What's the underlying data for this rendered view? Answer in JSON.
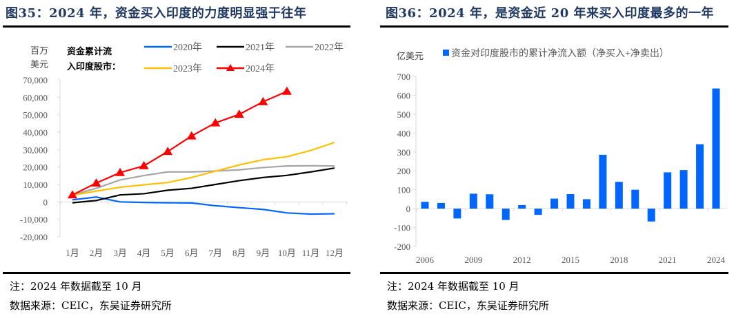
{
  "left": {
    "figure_title": "图35：2024 年，资金买入印度的力度明显强于往年",
    "note": "注：2024 年数据截至 10 月",
    "source": "数据来源：CEIC，东吴证券研究所"
  },
  "right": {
    "figure_title": "图36：2024 年，是资金近 20 年来买入印度最多的一年",
    "note": "注：2024 年数据截至 10 月",
    "source": "数据来源：CEIC，东吴证券研究所"
  },
  "chart_data": [
    {
      "type": "line",
      "title": "2024 年，资金买入印度的力度明显强于往年",
      "ylabel": "百万美元",
      "ylabel_lines": [
        "百万",
        "美元"
      ],
      "legend_title_lines": [
        "资金累计流",
        "入印度股市："
      ],
      "legend_position": "top",
      "xlabel": "",
      "ylim": [
        -20000,
        70000
      ],
      "yticks": [
        70000,
        60000,
        50000,
        40000,
        30000,
        20000,
        10000,
        0,
        -10000,
        -20000
      ],
      "ytick_labels": [
        "70,000",
        "60,000",
        "50,000",
        "40,000",
        "30,000",
        "20,000",
        "10,000",
        "0",
        "-10,000",
        "-20,000"
      ],
      "categories": [
        "1月",
        "2月",
        "3月",
        "4月",
        "5月",
        "6月",
        "7月",
        "8月",
        "9月",
        "10月",
        "11月",
        "12月"
      ],
      "grid": false,
      "series": [
        {
          "name": "2020年",
          "color": "#0066ff",
          "marker": "none",
          "values": [
            1200,
            2800,
            0,
            -300,
            -500,
            -600,
            -2200,
            -3300,
            -4300,
            -6300,
            -7000,
            -6800
          ]
        },
        {
          "name": "2021年",
          "color": "#000000",
          "marker": "none",
          "values": [
            -500,
            800,
            4000,
            4700,
            6700,
            7800,
            10000,
            12200,
            14000,
            15200,
            17200,
            19400
          ]
        },
        {
          "name": "2022年",
          "color": "#a6a6a6",
          "marker": "none",
          "values": [
            4000,
            7800,
            12600,
            15100,
            17200,
            17200,
            17700,
            18400,
            19700,
            20600,
            20700,
            20600
          ]
        },
        {
          "name": "2023年",
          "color": "#ffc000",
          "marker": "none",
          "values": [
            3800,
            6200,
            8400,
            9800,
            11100,
            14000,
            17600,
            21200,
            24200,
            25900,
            29500,
            34100
          ]
        },
        {
          "name": "2024年",
          "color": "#ff0000",
          "marker": "triangle",
          "values": [
            4000,
            10800,
            16800,
            20700,
            28900,
            37800,
            45300,
            50200,
            57400,
            63400,
            null,
            null
          ]
        }
      ]
    },
    {
      "type": "bar",
      "title": "2024 年，是资金近 20 年来买入印度最多的一年",
      "ylabel": "亿美元",
      "xlabel": "",
      "legend_position": "top",
      "ylim": [
        -200,
        700
      ],
      "yticks": [
        700,
        600,
        500,
        400,
        300,
        200,
        100,
        0,
        -100,
        -200
      ],
      "ytick_labels": [
        "700",
        "600",
        "500",
        "400",
        "300",
        "200",
        "100",
        "0",
        "-100",
        "-200"
      ],
      "categories": [
        "2006",
        "2007",
        "2008",
        "2009",
        "2010",
        "2011",
        "2012",
        "2013",
        "2014",
        "2015",
        "2016",
        "2017",
        "2018",
        "2019",
        "2020",
        "2021",
        "2022",
        "2023",
        "2024"
      ],
      "xtick_labels_shown": [
        "2006",
        "2009",
        "2012",
        "2015",
        "2018",
        "2021",
        "2024"
      ],
      "grid": false,
      "series": [
        {
          "name": "资金对印度股市的累计净流入额（净买入+净卖出）",
          "color": "#0066ff",
          "values": [
            36,
            30,
            -52,
            79,
            76,
            -60,
            19,
            -33,
            53,
            77,
            50,
            285,
            142,
            100,
            -68,
            192,
            204,
            341,
            636
          ]
        }
      ]
    }
  ]
}
